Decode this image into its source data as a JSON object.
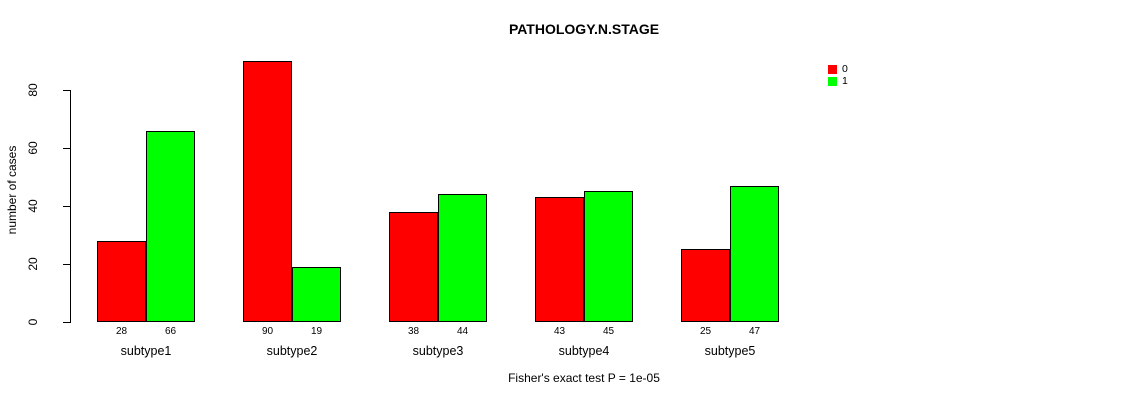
{
  "figure": {
    "title": "PATHOLOGY.N.STAGE",
    "caption": "Fisher's exact test P = 1e-05"
  },
  "chart_data": {
    "type": "bar",
    "title": "PATHOLOGY.N.STAGE",
    "ylabel": "number of cases",
    "xlabel": "",
    "caption": "Fisher's exact test P = 1e-05",
    "categories": [
      "subtype1",
      "subtype2",
      "subtype3",
      "subtype4",
      "subtype5"
    ],
    "series": [
      {
        "name": "0",
        "color": "#ff0000",
        "values": [
          28,
          90,
          38,
          43,
          25
        ]
      },
      {
        "name": "1",
        "color": "#00ff00",
        "values": [
          66,
          19,
          44,
          45,
          47
        ]
      }
    ],
    "bar_value_labels_shown": true,
    "yticks": [
      0,
      20,
      40,
      60,
      80
    ],
    "ylim": [
      0,
      80
    ],
    "grid": false,
    "legend": {
      "position": "top-right",
      "entries": [
        {
          "label": "0",
          "color": "#ff0000"
        },
        {
          "label": "1",
          "color": "#00ff00"
        }
      ]
    },
    "colors": {
      "axis": "#000000",
      "background": "#ffffff"
    }
  }
}
